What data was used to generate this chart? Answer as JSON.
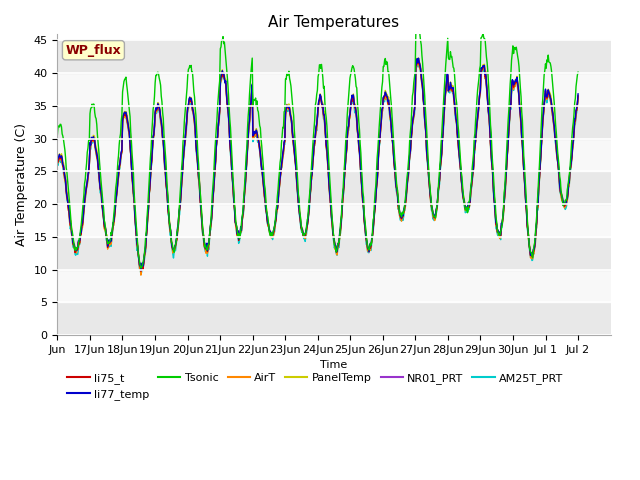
{
  "title": "Air Temperatures",
  "ylabel": "Air Temperature (C)",
  "xlabel": "Time",
  "ylim": [
    0,
    46
  ],
  "yticks": [
    0,
    5,
    10,
    15,
    20,
    25,
    30,
    35,
    40,
    45
  ],
  "series_colors": {
    "li75_t": "#cc0000",
    "li77_temp": "#0000cc",
    "Tsonic": "#00cc00",
    "AirT": "#ff8800",
    "PanelTemp": "#cccc00",
    "NR01_PRT": "#9933cc",
    "AM25T_PRT": "#00cccc"
  },
  "wp_flux_label": "WP_flux",
  "bg_color": "#ffffff",
  "plot_bg": "#ffffff",
  "band_colors": [
    "#e8e8e8",
    "#f8f8f8"
  ],
  "tick_label_size": 8,
  "linewidth": 1.0,
  "num_days": 16,
  "pts_per_day": 48
}
